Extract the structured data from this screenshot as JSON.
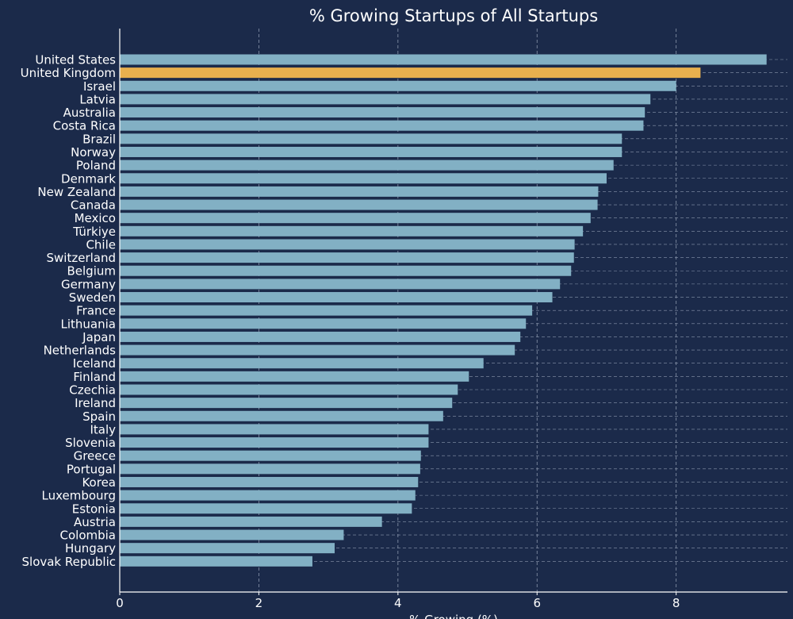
{
  "chart_data": {
    "type": "bar",
    "orientation": "horizontal",
    "title": "% Growing Startups of All Startups",
    "xlabel": "% Growing (%)",
    "ylabel": "",
    "xlim": [
      0,
      9.6
    ],
    "xticks": [
      0,
      2,
      4,
      6,
      8
    ],
    "grid": true,
    "categories": [
      "United States",
      "United Kingdom",
      "Israel",
      "Latvia",
      "Australia",
      "Costa Rica",
      "Brazil",
      "Norway",
      "Poland",
      "Denmark",
      "New Zealand",
      "Canada",
      "Mexico",
      "Türkiye",
      "Chile",
      "Switzerland",
      "Belgium",
      "Germany",
      "Sweden",
      "France",
      "Lithuania",
      "Japan",
      "Netherlands",
      "Iceland",
      "Finland",
      "Czechia",
      "Ireland",
      "Spain",
      "Italy",
      "Slovenia",
      "Greece",
      "Portugal",
      "Korea",
      "Luxembourg",
      "Estonia",
      "Austria",
      "Colombia",
      "Hungary",
      "Slovak Republic"
    ],
    "values": [
      9.3,
      8.35,
      8.0,
      7.63,
      7.55,
      7.53,
      7.22,
      7.22,
      7.1,
      7.0,
      6.88,
      6.87,
      6.77,
      6.66,
      6.54,
      6.53,
      6.49,
      6.33,
      6.22,
      5.93,
      5.84,
      5.76,
      5.68,
      5.23,
      5.02,
      4.86,
      4.78,
      4.65,
      4.44,
      4.44,
      4.33,
      4.32,
      4.29,
      4.25,
      4.2,
      3.77,
      3.22,
      3.09,
      2.77
    ],
    "highlight_category": "United Kingdom",
    "colors": {
      "background": "#1b2a4a",
      "bar": "#82b0c4",
      "highlight": "#e8b04e",
      "text": "#ffffff",
      "grid": "#8b97ad"
    }
  }
}
